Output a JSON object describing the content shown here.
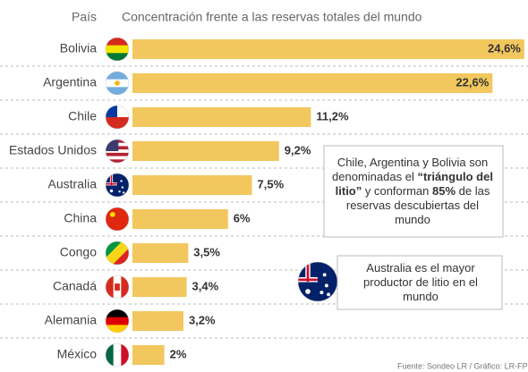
{
  "chart_data": {
    "type": "bar",
    "orientation": "horizontal",
    "category_header": "País",
    "title": "Concentración frente a las reservas totales del mundo",
    "categories": [
      "Bolivia",
      "Argentina",
      "Chile",
      "Estados Unidos",
      "Australia",
      "China",
      "Congo",
      "Canadá",
      "Alemania",
      "México"
    ],
    "values": [
      24.6,
      22.6,
      11.2,
      9.2,
      7.5,
      6,
      3.5,
      3.4,
      3.2,
      2
    ],
    "value_labels": [
      "24,6%",
      "22,6%",
      "11,2%",
      "9,2%",
      "7,5%",
      "6%",
      "3,5%",
      "3,4%",
      "3,2%",
      "2%"
    ],
    "color": "#f2c75e",
    "annotations": [
      {
        "lines": [
          [
            {
              "text": "Chile, Argentina y Bolivia son"
            }
          ],
          [
            {
              "text": "denominadas el "
            },
            {
              "text": "“triángulo del",
              "bold": true
            }
          ],
          [
            {
              "text": "litio”",
              "bold": true
            },
            {
              "text": " y conforman "
            },
            {
              "text": "85%",
              "bold": true
            },
            {
              "text": " de las"
            }
          ],
          [
            {
              "text": "reservas descubiertas del"
            }
          ],
          [
            {
              "text": "mundo"
            }
          ]
        ]
      },
      {
        "lines": [
          [
            {
              "text": "Australia es el mayor"
            }
          ],
          [
            {
              "text": "productor de litio en el"
            }
          ],
          [
            {
              "text": "mundo"
            }
          ]
        ]
      }
    ],
    "source": "Fuente: Sondeo LR / Gráfico: LR-FP"
  }
}
